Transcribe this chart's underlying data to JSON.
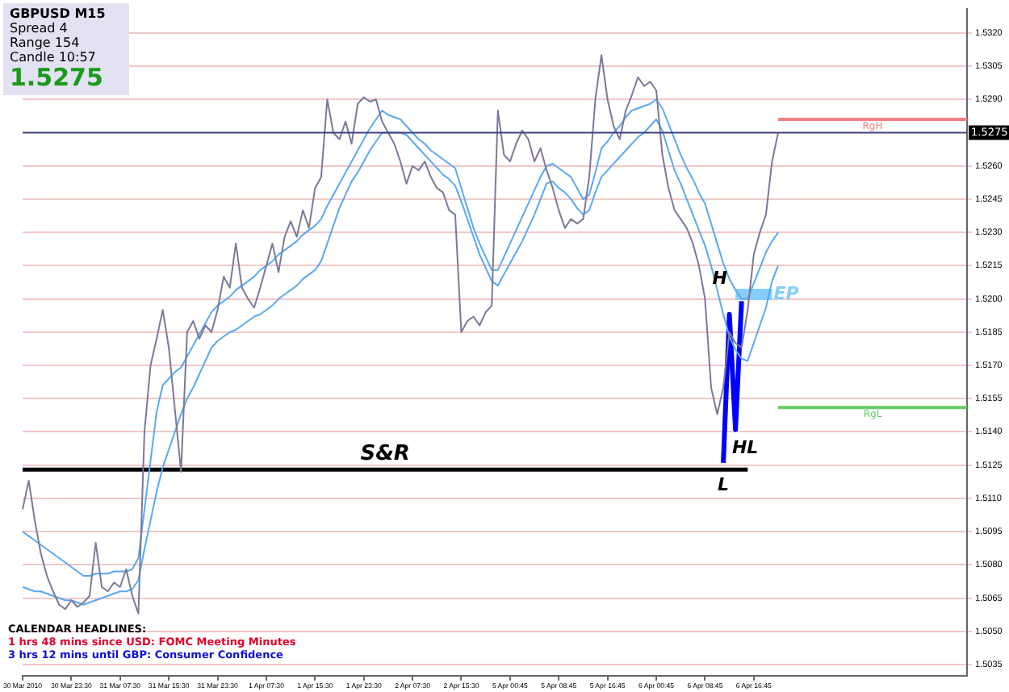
{
  "chart_data": {
    "type": "line",
    "title": "GBPUSD  M15",
    "annotations": [
      "Spread  4",
      "Range  154",
      "Candle  10:57",
      "1.5275",
      "CALENDAR HEADLINES:",
      "1 hrs 48 mins since USD: FOMC Meeting Minutes",
      "3 hrs 12 mins until GBP: Consumer Confidence",
      "H",
      "HL",
      "L"
    ],
    "categories": [
      "30 Mar 2010",
      null,
      null,
      null,
      null,
      null,
      null,
      null,
      "30 Mar 23:30",
      null,
      null,
      null,
      null,
      null,
      null,
      null,
      "31 Mar 07:30",
      null,
      null,
      null,
      null,
      null,
      null,
      null,
      "31 Mar 15:30",
      null,
      null,
      null,
      null,
      null,
      null,
      null,
      "31 Mar 23:30",
      null,
      null,
      null,
      null,
      null,
      null,
      null,
      "1 Apr 07:30",
      null,
      null,
      null,
      null,
      null,
      null,
      null,
      "1 Apr 15:30",
      null,
      null,
      null,
      null,
      null,
      null,
      null,
      "1 Apr 23:30",
      null,
      null,
      null,
      null,
      null,
      null,
      null,
      "2 Apr 07:30",
      null,
      null,
      null,
      null,
      null,
      null,
      null,
      "2 Apr 15:30",
      null,
      null,
      null,
      null,
      null,
      null,
      null,
      "5 Apr 00:45",
      null,
      null,
      null,
      null,
      null,
      null,
      null,
      "5 Apr 08:45",
      null,
      null,
      null,
      null,
      null,
      null,
      null,
      "5 Apr 16:45",
      null,
      null,
      null,
      null,
      null,
      null,
      null,
      "6 Apr 00:45",
      null,
      null,
      null,
      null,
      null,
      null,
      null,
      "6 Apr 08:45",
      null,
      null,
      null,
      null,
      null,
      null,
      null,
      "6 Apr 16:45",
      null,
      null,
      null,
      null,
      null,
      null,
      null,
      null,
      null,
      null,
      null,
      null,
      null,
      null,
      null,
      null,
      null,
      null,
      null,
      null,
      null,
      null,
      null,
      null,
      null,
      null,
      null,
      null,
      null,
      null,
      null,
      null,
      null,
      null,
      null
    ],
    "series": [
      {
        "color": "#7a7a98",
        "values": [
          1.5105,
          1.5118,
          1.51,
          1.5085,
          1.5075,
          1.5068,
          1.5062,
          1.506,
          1.5064,
          1.5061,
          1.5063,
          1.5066,
          1.509,
          1.507,
          1.5068,
          1.5072,
          1.507,
          1.5078,
          1.5066,
          1.5058,
          1.514,
          1.517,
          1.5182,
          1.5195,
          1.5178,
          1.515,
          1.5122,
          1.5185,
          1.519,
          1.5182,
          1.5188,
          1.5185,
          1.5195,
          1.521,
          1.5205,
          1.5225,
          1.5205,
          1.52,
          1.5196,
          1.5205,
          1.5215,
          1.5225,
          1.5212,
          1.5228,
          1.5235,
          1.5228,
          1.524,
          1.5232,
          1.525,
          1.5255,
          1.529,
          1.5275,
          1.5272,
          1.528,
          1.527,
          1.5288,
          1.5291,
          1.5289,
          1.529,
          1.528,
          1.5275,
          1.527,
          1.5262,
          1.5252,
          1.526,
          1.5258,
          1.5262,
          1.5255,
          1.525,
          1.5248,
          1.524,
          1.5238,
          1.5185,
          1.519,
          1.5192,
          1.5188,
          1.5194,
          1.5197,
          1.5285,
          1.5265,
          1.5262,
          1.527,
          1.5276,
          1.5272,
          1.5262,
          1.5268,
          1.5258,
          1.525,
          1.524,
          1.5232,
          1.5236,
          1.5234,
          1.5236,
          1.5255,
          1.529,
          1.531,
          1.529,
          1.5278,
          1.5272,
          1.5285,
          1.5292,
          1.53,
          1.5296,
          1.5298,
          1.5294,
          1.5265,
          1.525,
          1.524,
          1.5236,
          1.5232,
          1.5225,
          1.5215,
          1.52,
          1.516,
          1.5148,
          1.516,
          1.5185,
          1.518,
          1.5178,
          1.5195,
          1.522,
          1.523,
          1.5238,
          1.5262,
          1.5275,
          null,
          null,
          null,
          null,
          null,
          null,
          null,
          null,
          null,
          null,
          null,
          null,
          null,
          null,
          null,
          null,
          null,
          null,
          null,
          null,
          null,
          null,
          null,
          null,
          null,
          null,
          null,
          null,
          null,
          null,
          null
        ]
      },
      {
        "color": "#5aa9f0",
        "values": [
          1.5095,
          1.5093,
          1.5091,
          1.5089,
          1.5087,
          1.5085,
          1.5083,
          1.5081,
          1.5079,
          1.5077,
          1.5075,
          1.5075,
          1.5076,
          1.5076,
          1.5076,
          1.5077,
          1.5077,
          1.5077,
          1.5078,
          1.5083,
          1.5105,
          1.5127,
          1.5149,
          1.5161,
          1.5164,
          1.5167,
          1.5169,
          1.5174,
          1.5179,
          1.5184,
          1.5189,
          1.5194,
          1.5197,
          1.5199,
          1.5201,
          1.5204,
          1.5206,
          1.5208,
          1.521,
          1.5213,
          1.5215,
          1.5217,
          1.522,
          1.5222,
          1.5224,
          1.5226,
          1.5229,
          1.5231,
          1.5233,
          1.5236,
          1.5242,
          1.5247,
          1.5252,
          1.5257,
          1.5262,
          1.5267,
          1.5272,
          1.5277,
          1.5281,
          1.5285,
          1.5283,
          1.5282,
          1.5281,
          1.5278,
          1.5275,
          1.5272,
          1.527,
          1.5267,
          1.5265,
          1.5263,
          1.5261,
          1.5259,
          1.525,
          1.5241,
          1.5232,
          1.5225,
          1.5219,
          1.5213,
          1.5213,
          1.5219,
          1.5225,
          1.5231,
          1.5237,
          1.5243,
          1.5249,
          1.5255,
          1.526,
          1.5261,
          1.5259,
          1.5257,
          1.5255,
          1.525,
          1.5245,
          1.5247,
          1.5257,
          1.5268,
          1.5271,
          1.5275,
          1.5278,
          1.5282,
          1.5285,
          1.5286,
          1.5287,
          1.5288,
          1.529,
          1.5286,
          1.5279,
          1.5272,
          1.5265,
          1.5259,
          1.5254,
          1.5248,
          1.5243,
          1.5234,
          1.5225,
          1.5216,
          1.5209,
          1.5204,
          1.52,
          1.52,
          1.5207,
          1.5214,
          1.5221,
          1.5226,
          1.523,
          null,
          null,
          null,
          null,
          null,
          null,
          null,
          null,
          null,
          null,
          null,
          null,
          null,
          null,
          null,
          null,
          null,
          null,
          null,
          null,
          null,
          null,
          null,
          null,
          null,
          null,
          null,
          null,
          null,
          null,
          null
        ]
      },
      {
        "color": "#5aa9f0",
        "values": [
          1.507,
          1.5069,
          1.5068,
          1.5068,
          1.5067,
          1.5066,
          1.5065,
          1.5064,
          1.5064,
          1.5063,
          1.5062,
          1.5063,
          1.5064,
          1.5065,
          1.5066,
          1.5067,
          1.5068,
          1.5068,
          1.5069,
          1.5073,
          1.5087,
          1.51,
          1.5113,
          1.5124,
          1.5132,
          1.514,
          1.5148,
          1.5155,
          1.516,
          1.5166,
          1.5172,
          1.5178,
          1.5181,
          1.5183,
          1.5185,
          1.5186,
          1.5188,
          1.519,
          1.5192,
          1.5193,
          1.5195,
          1.5197,
          1.52,
          1.5202,
          1.5204,
          1.5206,
          1.5209,
          1.5211,
          1.5213,
          1.5217,
          1.5225,
          1.5233,
          1.5241,
          1.5247,
          1.5253,
          1.5257,
          1.5262,
          1.5267,
          1.5271,
          1.5275,
          1.5275,
          1.5275,
          1.5275,
          1.5274,
          1.5271,
          1.5268,
          1.5265,
          1.5262,
          1.5259,
          1.5256,
          1.5254,
          1.5251,
          1.5244,
          1.5236,
          1.5228,
          1.522,
          1.5214,
          1.5208,
          1.5206,
          1.5211,
          1.5216,
          1.5221,
          1.5226,
          1.5232,
          1.5238,
          1.5245,
          1.5252,
          1.5253,
          1.525,
          1.5248,
          1.5245,
          1.5241,
          1.5238,
          1.524,
          1.5248,
          1.5255,
          1.5258,
          1.5261,
          1.5264,
          1.5267,
          1.527,
          1.5273,
          1.5275,
          1.5278,
          1.5281,
          1.5276,
          1.5267,
          1.5258,
          1.5252,
          1.5245,
          1.5238,
          1.5231,
          1.5224,
          1.5215,
          1.5204,
          1.5193,
          1.5183,
          1.5177,
          1.5173,
          1.5172,
          1.518,
          1.5188,
          1.5196,
          1.5208,
          1.5215,
          null,
          null,
          null,
          null,
          null,
          null,
          null,
          null,
          null,
          null,
          null,
          null,
          null,
          null,
          null,
          null,
          null,
          null,
          null,
          null,
          null,
          null,
          null,
          null,
          null,
          null,
          null,
          null,
          null,
          null,
          null
        ]
      },
      {
        "color": "#0000ff",
        "values": [
          null,
          null,
          null,
          null,
          null,
          null,
          null,
          null,
          null,
          null,
          null,
          null,
          null,
          null,
          null,
          null,
          null,
          null,
          null,
          null,
          null,
          null,
          null,
          null,
          null,
          null,
          null,
          null,
          null,
          null,
          null,
          null,
          null,
          null,
          null,
          null,
          null,
          null,
          null,
          null,
          null,
          null,
          null,
          null,
          null,
          null,
          null,
          null,
          null,
          null,
          null,
          null,
          null,
          null,
          null,
          null,
          null,
          null,
          null,
          null,
          null,
          null,
          null,
          null,
          null,
          null,
          null,
          null,
          null,
          null,
          null,
          null,
          null,
          null,
          null,
          null,
          null,
          null,
          null,
          null,
          null,
          null,
          null,
          null,
          null,
          null,
          null,
          null,
          null,
          null,
          null,
          null,
          null,
          null,
          null,
          null,
          null,
          null,
          null,
          null,
          null,
          null,
          null,
          null,
          null,
          null,
          null,
          null,
          null,
          null,
          null,
          null,
          null,
          null,
          null,
          1.5126,
          1.5193,
          1.5141,
          1.5199,
          null,
          null,
          null,
          null,
          null,
          null,
          null,
          null,
          null,
          null,
          null,
          null,
          null,
          null,
          null,
          null,
          null,
          null,
          null,
          null,
          null,
          null,
          null,
          null,
          null,
          null,
          null,
          null,
          null,
          null,
          null,
          null,
          null,
          null,
          null,
          null,
          null
        ]
      },
      {
        "name": "S&R",
        "color": "#000000",
        "values": [
          1.5123,
          1.5123,
          1.5123,
          1.5123,
          1.5123,
          1.5123,
          1.5123,
          1.5123,
          1.5123,
          1.5123,
          1.5123,
          1.5123,
          1.5123,
          1.5123,
          1.5123,
          1.5123,
          1.5123,
          1.5123,
          1.5123,
          1.5123,
          1.5123,
          1.5123,
          1.5123,
          1.5123,
          1.5123,
          1.5123,
          1.5123,
          1.5123,
          1.5123,
          1.5123,
          1.5123,
          1.5123,
          1.5123,
          1.5123,
          1.5123,
          1.5123,
          1.5123,
          1.5123,
          1.5123,
          1.5123,
          1.5123,
          1.5123,
          1.5123,
          1.5123,
          1.5123,
          1.5123,
          1.5123,
          1.5123,
          1.5123,
          1.5123,
          1.5123,
          1.5123,
          1.5123,
          1.5123,
          1.5123,
          1.5123,
          1.5123,
          1.5123,
          1.5123,
          1.5123,
          1.5123,
          1.5123,
          1.5123,
          1.5123,
          1.5123,
          1.5123,
          1.5123,
          1.5123,
          1.5123,
          1.5123,
          1.5123,
          1.5123,
          1.5123,
          1.5123,
          1.5123,
          1.5123,
          1.5123,
          1.5123,
          1.5123,
          1.5123,
          1.5123,
          1.5123,
          1.5123,
          1.5123,
          1.5123,
          1.5123,
          1.5123,
          1.5123,
          1.5123,
          1.5123,
          1.5123,
          1.5123,
          1.5123,
          1.5123,
          1.5123,
          1.5123,
          1.5123,
          1.5123,
          1.5123,
          1.5123,
          1.5123,
          1.5123,
          1.5123,
          1.5123,
          1.5123,
          1.5123,
          1.5123,
          1.5123,
          1.5123,
          1.5123,
          1.5123,
          1.5123,
          1.5123,
          1.5123,
          1.5123,
          1.5123,
          1.5123,
          1.5123,
          1.5123,
          1.5123,
          null,
          null,
          null,
          null,
          null,
          null,
          null,
          null,
          null,
          null,
          null,
          null,
          null,
          null,
          null,
          null,
          null,
          null,
          null,
          null,
          null,
          null,
          null,
          null,
          null,
          null,
          null,
          null,
          null,
          null,
          null,
          null,
          null,
          null,
          null,
          null
        ]
      },
      {
        "name": "RgH",
        "color": "#f08080",
        "values": [
          null,
          null,
          null,
          null,
          null,
          null,
          null,
          null,
          null,
          null,
          null,
          null,
          null,
          null,
          null,
          null,
          null,
          null,
          null,
          null,
          null,
          null,
          null,
          null,
          null,
          null,
          null,
          null,
          null,
          null,
          null,
          null,
          null,
          null,
          null,
          null,
          null,
          null,
          null,
          null,
          null,
          null,
          null,
          null,
          null,
          null,
          null,
          null,
          null,
          null,
          null,
          null,
          null,
          null,
          null,
          null,
          null,
          null,
          null,
          null,
          null,
          null,
          null,
          null,
          null,
          null,
          null,
          null,
          null,
          null,
          null,
          null,
          null,
          null,
          null,
          null,
          null,
          null,
          null,
          null,
          null,
          null,
          null,
          null,
          null,
          null,
          null,
          null,
          null,
          null,
          null,
          null,
          null,
          null,
          null,
          null,
          null,
          null,
          null,
          null,
          null,
          null,
          null,
          null,
          null,
          null,
          null,
          null,
          null,
          null,
          null,
          null,
          null,
          null,
          null,
          null,
          null,
          null,
          null,
          null,
          null,
          null,
          null,
          null,
          1.5281,
          1.5281,
          1.5281,
          1.5281,
          1.5281,
          1.5281,
          1.5281,
          1.5281,
          1.5281,
          1.5281,
          1.5281,
          1.5281,
          1.5281,
          1.5281,
          1.5281,
          1.5281,
          1.5281,
          1.5281,
          1.5281,
          1.5281,
          1.5281,
          1.5281,
          1.5281,
          1.5281,
          1.5281,
          1.5281,
          1.5281,
          1.5281,
          1.5281,
          1.5281,
          1.5281,
          1.5281
        ]
      },
      {
        "name": "RgL",
        "color": "#66cc66",
        "values": [
          null,
          null,
          null,
          null,
          null,
          null,
          null,
          null,
          null,
          null,
          null,
          null,
          null,
          null,
          null,
          null,
          null,
          null,
          null,
          null,
          null,
          null,
          null,
          null,
          null,
          null,
          null,
          null,
          null,
          null,
          null,
          null,
          null,
          null,
          null,
          null,
          null,
          null,
          null,
          null,
          null,
          null,
          null,
          null,
          null,
          null,
          null,
          null,
          null,
          null,
          null,
          null,
          null,
          null,
          null,
          null,
          null,
          null,
          null,
          null,
          null,
          null,
          null,
          null,
          null,
          null,
          null,
          null,
          null,
          null,
          null,
          null,
          null,
          null,
          null,
          null,
          null,
          null,
          null,
          null,
          null,
          null,
          null,
          null,
          null,
          null,
          null,
          null,
          null,
          null,
          null,
          null,
          null,
          null,
          null,
          null,
          null,
          null,
          null,
          null,
          null,
          null,
          null,
          null,
          null,
          null,
          null,
          null,
          null,
          null,
          null,
          null,
          null,
          null,
          null,
          null,
          null,
          null,
          null,
          null,
          null,
          null,
          null,
          null,
          1.5151,
          1.5151,
          1.5151,
          1.5151,
          1.5151,
          1.5151,
          1.5151,
          1.5151,
          1.5151,
          1.5151,
          1.5151,
          1.5151,
          1.5151,
          1.5151,
          1.5151,
          1.5151,
          1.5151,
          1.5151,
          1.5151,
          1.5151,
          1.5151,
          1.5151,
          1.5151,
          1.5151,
          1.5151,
          1.5151,
          1.5151,
          1.5151,
          1.5151,
          1.5151,
          1.5151,
          1.5151
        ]
      },
      {
        "name": "EP",
        "color": "#87cefa",
        "values": [
          null,
          null,
          null,
          null,
          null,
          null,
          null,
          null,
          null,
          null,
          null,
          null,
          null,
          null,
          null,
          null,
          null,
          null,
          null,
          null,
          null,
          null,
          null,
          null,
          null,
          null,
          null,
          null,
          null,
          null,
          null,
          null,
          null,
          null,
          null,
          null,
          null,
          null,
          null,
          null,
          null,
          null,
          null,
          null,
          null,
          null,
          null,
          null,
          null,
          null,
          null,
          null,
          null,
          null,
          null,
          null,
          null,
          null,
          null,
          null,
          null,
          null,
          null,
          null,
          null,
          null,
          null,
          null,
          null,
          null,
          null,
          null,
          null,
          null,
          null,
          null,
          null,
          null,
          null,
          null,
          null,
          null,
          null,
          null,
          null,
          null,
          null,
          null,
          null,
          null,
          null,
          null,
          null,
          null,
          null,
          null,
          null,
          null,
          null,
          null,
          null,
          null,
          null,
          null,
          null,
          null,
          null,
          null,
          null,
          null,
          null,
          null,
          null,
          null,
          null,
          null,
          null,
          1.5202,
          1.5202,
          1.5202,
          1.5202,
          1.5202,
          1.5202,
          1.5202,
          null,
          null,
          null,
          null,
          null,
          null,
          null,
          null,
          null,
          null,
          null,
          null,
          null,
          null,
          null,
          null,
          null,
          null,
          null,
          null,
          null,
          null,
          null,
          null,
          null,
          null,
          null,
          null,
          null,
          null,
          null,
          null
        ]
      }
    ],
    "ylim": [
      1.503,
      1.5331
    ],
    "yticks": [
      {
        "value": 1.5035,
        "label": "1.5035"
      },
      {
        "value": 1.505,
        "label": "1.5050"
      },
      {
        "value": 1.5065,
        "label": "1.5065"
      },
      {
        "value": 1.508,
        "label": "1.5080"
      },
      {
        "value": 1.5095,
        "label": "1.5095"
      },
      {
        "value": 1.511,
        "label": "1.5110"
      },
      {
        "value": 1.5125,
        "label": "1.5125"
      },
      {
        "value": 1.514,
        "label": "1.5140"
      },
      {
        "value": 1.5155,
        "label": "1.5155"
      },
      {
        "value": 1.517,
        "label": "1.5170"
      },
      {
        "value": 1.5185,
        "label": "1.5185"
      },
      {
        "value": 1.52,
        "label": "1.5200"
      },
      {
        "value": 1.5215,
        "label": "1.5215"
      },
      {
        "value": 1.523,
        "label": "1.5230"
      },
      {
        "value": 1.5245,
        "label": "1.5245"
      },
      {
        "value": 1.526,
        "label": "1.5260"
      },
      {
        "value": 1.529,
        "label": "1.5290"
      },
      {
        "value": 1.5305,
        "label": "1.5305"
      },
      {
        "value": 1.532,
        "label": "1.5320"
      }
    ],
    "ref_lines": [
      {
        "axis": "y",
        "value": 1.5275,
        "label": "1.5275",
        "color": "#404080"
      }
    ],
    "grid": "y",
    "legend": false,
    "marker": "none",
    "line_style": "solid"
  }
}
